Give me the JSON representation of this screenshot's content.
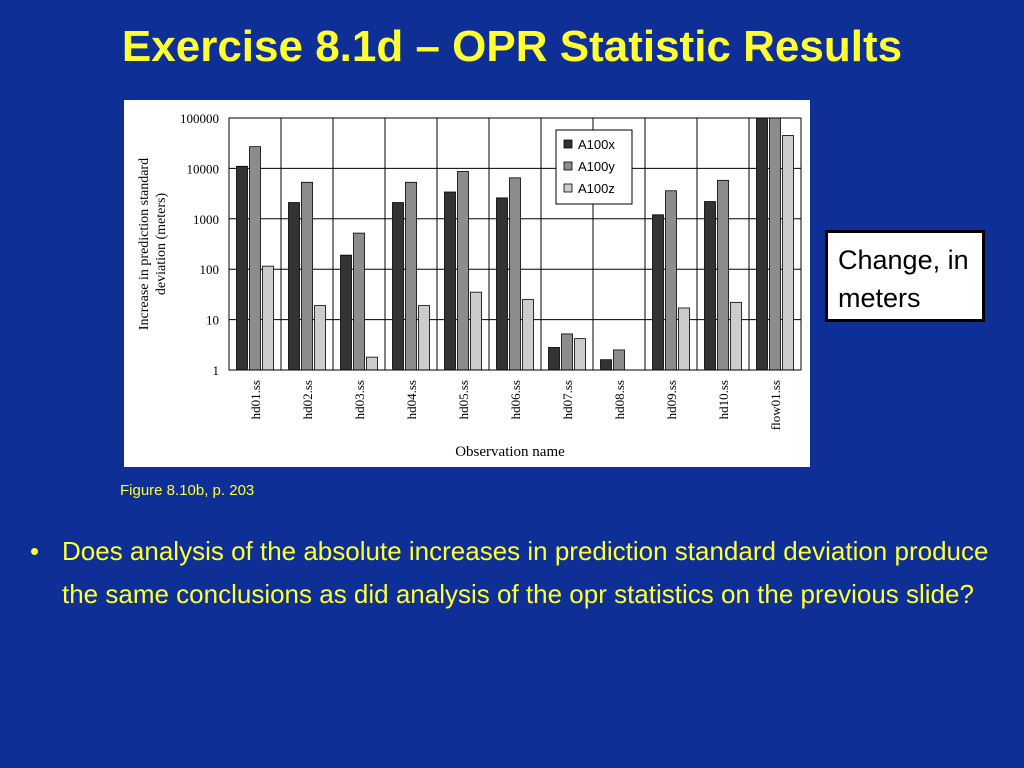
{
  "slide": {
    "title": "Exercise 8.1d – OPR Statistic Results",
    "callout": "Change, in meters",
    "caption": "Figure 8.10b, p. 203",
    "bullet_symbol": "•",
    "bullet": "Does analysis of the absolute increases in prediction standard deviation produce the same conclusions as did analysis of the opr statistics on the previous slide?",
    "background_color": "#0d2f96",
    "text_color": "#ffff33"
  },
  "chart_data": {
    "type": "bar",
    "yscale": "log",
    "ylim": [
      1,
      100000
    ],
    "yticks": [
      "100000",
      "10000",
      "1000",
      "100",
      "10",
      "1"
    ],
    "ylabel_lines": [
      "Increase in prediction standard",
      "deviation (meters)"
    ],
    "xlabel": "Observation name",
    "categories": [
      "hd01.ss",
      "hd02.ss",
      "hd03.ss",
      "hd04.ss",
      "hd05.ss",
      "hd06.ss",
      "hd07.ss",
      "hd08.ss",
      "hd09.ss",
      "hd10.ss",
      "flow01.ss"
    ],
    "series": [
      {
        "name": "A100x",
        "color": "#333333",
        "values": [
          11000,
          2100,
          190,
          2100,
          3400,
          2600,
          2.8,
          1.6,
          1200,
          2200,
          100000
        ]
      },
      {
        "name": "A100y",
        "color": "#8c8c8c",
        "values": [
          27000,
          5300,
          520,
          5300,
          8700,
          6500,
          5.2,
          2.5,
          3600,
          5800,
          100000
        ]
      },
      {
        "name": "A100z",
        "color": "#cccccc",
        "values": [
          115,
          19,
          1.8,
          19,
          35,
          25,
          4.2,
          1.0,
          17,
          22,
          45000
        ]
      }
    ],
    "grid": true,
    "legend_position": "top-right"
  }
}
